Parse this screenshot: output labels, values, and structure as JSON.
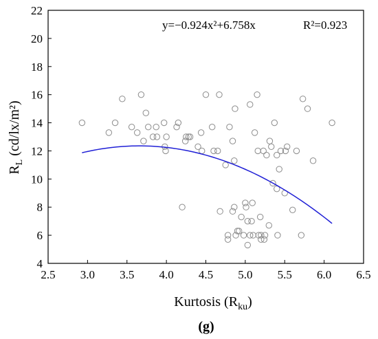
{
  "chart_data": {
    "type": "scatter",
    "panel_label": "(g)",
    "xlabel_main": "Kurtosis (R",
    "xlabel_sub": "ku",
    "xlabel_tail": ")",
    "ylabel_main": "R",
    "ylabel_sub": "L",
    "ylabel_tail": " (cd/lx/m²)",
    "xlim": [
      2.5,
      6.5
    ],
    "ylim": [
      4,
      22
    ],
    "xticks": [
      2.5,
      3.0,
      3.5,
      4.0,
      4.5,
      5.0,
      5.5,
      6.0,
      6.5
    ],
    "xtick_labels": [
      "2.5",
      "3.0",
      "3.5",
      "4.0",
      "4.5",
      "5.0",
      "5.5",
      "6.0",
      "6.5"
    ],
    "yticks": [
      4,
      6,
      8,
      10,
      12,
      14,
      16,
      18,
      20,
      22
    ],
    "ytick_labels": [
      "4",
      "6",
      "8",
      "10",
      "12",
      "14",
      "16",
      "18",
      "20",
      "22"
    ],
    "grid": false,
    "equation": "y=−0.924x²+6.758x",
    "r_squared": "R²=0.923",
    "fit": {
      "a": -0.924,
      "b": 6.758,
      "x_range": [
        2.93,
        6.1
      ],
      "color": "#1f1fd6"
    },
    "marker_color": "#8c8c8c",
    "points": [
      [
        2.93,
        14.0
      ],
      [
        3.27,
        13.3
      ],
      [
        3.35,
        14.0
      ],
      [
        3.44,
        15.7
      ],
      [
        3.56,
        13.7
      ],
      [
        3.63,
        13.3
      ],
      [
        3.68,
        16.0
      ],
      [
        3.71,
        12.7
      ],
      [
        3.74,
        14.7
      ],
      [
        3.77,
        13.7
      ],
      [
        3.83,
        13.0
      ],
      [
        3.87,
        13.7
      ],
      [
        3.88,
        13.0
      ],
      [
        3.97,
        14.0
      ],
      [
        3.98,
        12.3
      ],
      [
        3.99,
        12.0
      ],
      [
        4.0,
        13.0
      ],
      [
        4.13,
        13.7
      ],
      [
        4.15,
        14.0
      ],
      [
        4.2,
        8.0
      ],
      [
        4.24,
        12.7
      ],
      [
        4.25,
        13.0
      ],
      [
        4.28,
        13.0
      ],
      [
        4.3,
        13.0
      ],
      [
        4.4,
        12.3
      ],
      [
        4.44,
        13.3
      ],
      [
        4.45,
        12.0
      ],
      [
        4.5,
        16.0
      ],
      [
        4.58,
        13.7
      ],
      [
        4.6,
        12.0
      ],
      [
        4.65,
        12.0
      ],
      [
        4.67,
        16.0
      ],
      [
        4.68,
        7.7
      ],
      [
        4.75,
        11.0
      ],
      [
        4.8,
        13.7
      ],
      [
        4.84,
        12.7
      ],
      [
        4.86,
        11.3
      ],
      [
        4.87,
        15.0
      ],
      [
        4.78,
        5.7
      ],
      [
        4.78,
        6.0
      ],
      [
        4.84,
        7.7
      ],
      [
        4.86,
        8.0
      ],
      [
        4.88,
        6.0
      ],
      [
        4.9,
        6.3
      ],
      [
        4.92,
        6.3
      ],
      [
        4.95,
        7.3
      ],
      [
        4.98,
        6.0
      ],
      [
        5.0,
        8.3
      ],
      [
        5.01,
        8.0
      ],
      [
        5.03,
        7.0
      ],
      [
        5.03,
        5.3
      ],
      [
        5.06,
        15.3
      ],
      [
        5.06,
        6.0
      ],
      [
        5.08,
        7.0
      ],
      [
        5.09,
        8.3
      ],
      [
        5.1,
        6.0
      ],
      [
        5.12,
        13.3
      ],
      [
        5.15,
        16.0
      ],
      [
        5.16,
        12.0
      ],
      [
        5.17,
        6.0
      ],
      [
        5.19,
        7.3
      ],
      [
        5.2,
        5.7
      ],
      [
        5.2,
        6.0
      ],
      [
        5.23,
        12.0
      ],
      [
        5.24,
        5.7
      ],
      [
        5.25,
        6.0
      ],
      [
        5.27,
        11.7
      ],
      [
        5.3,
        6.7
      ],
      [
        5.31,
        12.7
      ],
      [
        5.33,
        12.3
      ],
      [
        5.35,
        9.7
      ],
      [
        5.37,
        14.0
      ],
      [
        5.4,
        11.7
      ],
      [
        5.4,
        9.3
      ],
      [
        5.41,
        6.0
      ],
      [
        5.43,
        10.7
      ],
      [
        5.45,
        12.0
      ],
      [
        5.5,
        9.0
      ],
      [
        5.51,
        12.0
      ],
      [
        5.53,
        12.3
      ],
      [
        5.6,
        7.8
      ],
      [
        5.65,
        12.0
      ],
      [
        5.71,
        6.0
      ],
      [
        5.73,
        15.7
      ],
      [
        5.79,
        15.0
      ],
      [
        5.86,
        11.3
      ],
      [
        6.1,
        14.0
      ]
    ]
  }
}
